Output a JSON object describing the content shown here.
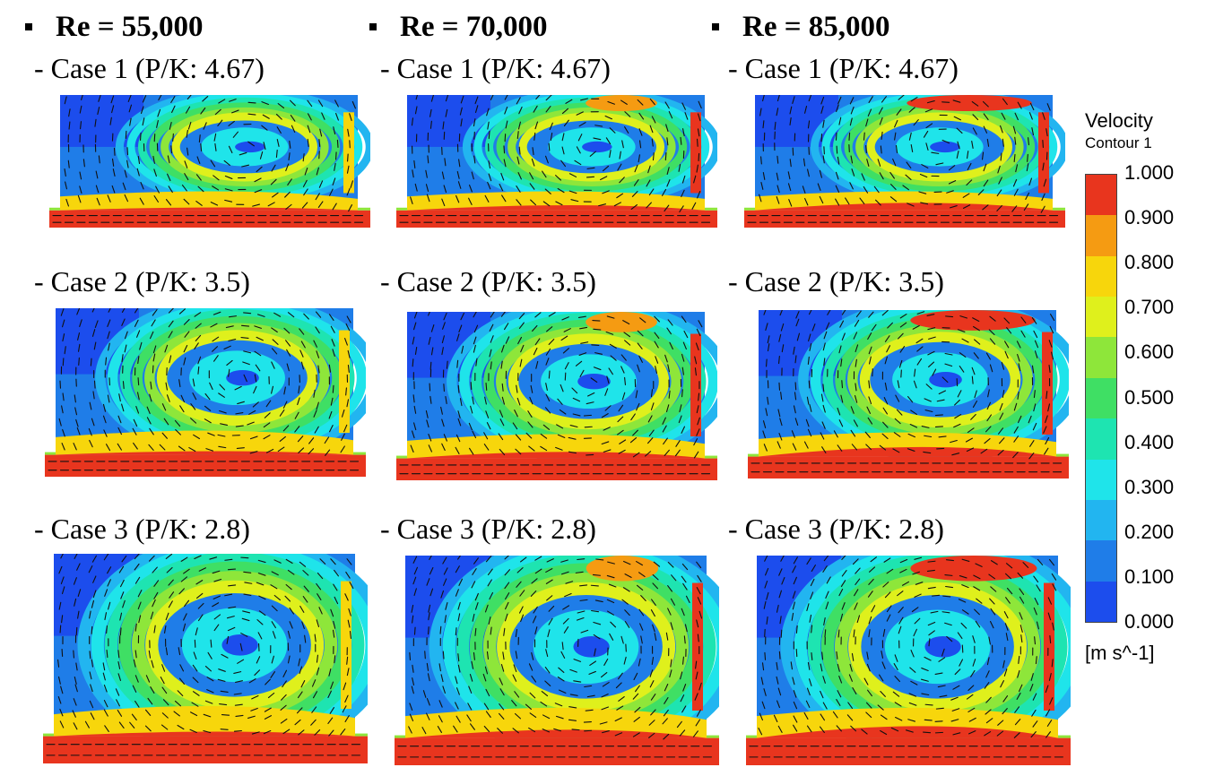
{
  "columns": [
    {
      "reynolds": "Re = 55,000"
    },
    {
      "reynolds": "Re = 70,000"
    },
    {
      "reynolds": "Re = 85,000"
    }
  ],
  "cases": [
    {
      "label": "- Case 1 (P/K: 4.67)",
      "pk": 4.67
    },
    {
      "label": "- Case 2 (P/K: 3.5)",
      "pk": 3.5
    },
    {
      "label": "- Case 3 (P/K: 2.8)",
      "pk": 2.8
    }
  ],
  "legend": {
    "title": "Velocity",
    "subtitle": "Contour 1",
    "unit": "[m s^-1]",
    "ticks": [
      "1.000",
      "0.900",
      "0.800",
      "0.700",
      "0.600",
      "0.500",
      "0.400",
      "0.300",
      "0.200",
      "0.100",
      "0.000"
    ],
    "colors": [
      "#e8351e",
      "#f59b12",
      "#f7d60c",
      "#dff01c",
      "#8ee63a",
      "#3fdf64",
      "#1ee4b1",
      "#1fe4ea",
      "#22b5f0",
      "#1f7de8",
      "#1c4ded"
    ]
  }
}
